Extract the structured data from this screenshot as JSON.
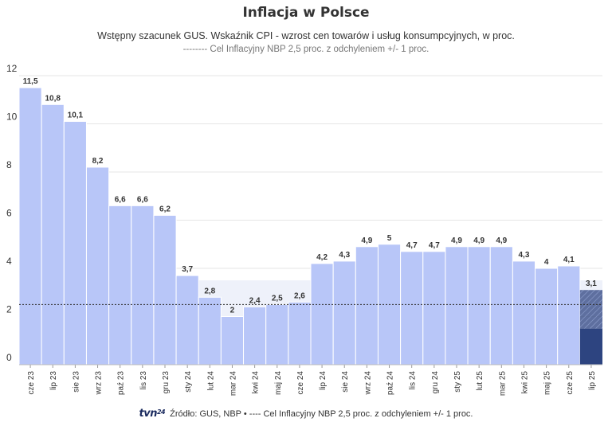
{
  "header": {
    "title": "Inflacja w Polsce",
    "subtitle": "Wstępny szacunek GUS. Wskaźnik CPI - wzrost cen towarów i usług konsumpcyjnych, w proc.",
    "target_note": "-------- Cel Inflacyjny NBP 2,5 proc. z odchyleniem +/- 1 proc."
  },
  "footer": {
    "logo_main": "tvn",
    "logo_sup": "24",
    "source": "Źródło: GUS, NBP • ---- Cel Inflacyjny NBP 2,5 proc. z odchyleniem +/- 1 proc."
  },
  "colors": {
    "bar": "#b8c6f8",
    "bar_last": "#2d4480",
    "target_band": "#eef1fa",
    "grid": "#e6e6e6",
    "target_line": "#333333"
  },
  "chart_data": {
    "type": "bar",
    "title": "Inflacja w Polsce",
    "xlabel": "",
    "ylabel": "",
    "ylim": [
      0,
      12
    ],
    "yticks": [
      0,
      2,
      4,
      6,
      8,
      10,
      12
    ],
    "target": 2.5,
    "target_band": [
      1.5,
      3.5
    ],
    "categories": [
      "cze 23",
      "lip 23",
      "sie 23",
      "wrz 23",
      "paź 23",
      "lis 23",
      "gru 23",
      "sty 24",
      "lut 24",
      "mar 24",
      "kwi 24",
      "maj 24",
      "cze 24",
      "lip 24",
      "sie 24",
      "wrz 24",
      "paź 24",
      "lis 24",
      "gru 24",
      "sty 25",
      "lut 25",
      "mar 25",
      "kwi 25",
      "maj 25",
      "cze 25",
      "lip 25"
    ],
    "values": [
      11.5,
      10.8,
      10.1,
      8.2,
      6.6,
      6.6,
      6.2,
      3.7,
      2.8,
      2,
      2.4,
      2.5,
      2.6,
      4.2,
      4.3,
      4.9,
      5,
      4.7,
      4.7,
      4.9,
      4.9,
      4.9,
      4.3,
      4,
      4.1,
      3.1
    ],
    "labels": [
      "11,5",
      "10,8",
      "10,1",
      "8,2",
      "6,6",
      "6,6",
      "6,2",
      "3,7",
      "2,8",
      "2",
      "2,4",
      "2,5",
      "2,6",
      "4,2",
      "4,3",
      "4,9",
      "5",
      "4,7",
      "4,7",
      "4,9",
      "4,9",
      "4,9",
      "4,3",
      "4",
      "4,1",
      "3,1"
    ],
    "highlight_last": true
  }
}
